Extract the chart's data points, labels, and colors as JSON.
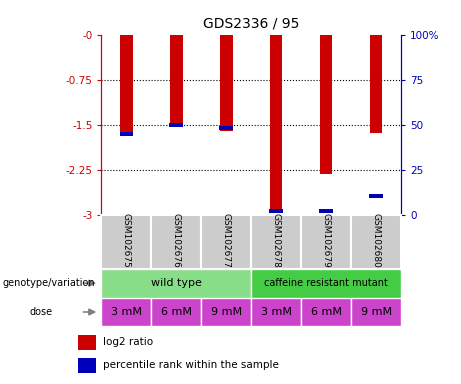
{
  "title": "GDS2336 / 95",
  "samples": [
    "GSM102675",
    "GSM102676",
    "GSM102677",
    "GSM102678",
    "GSM102679",
    "GSM102680"
  ],
  "log2_ratio": [
    -1.68,
    -1.52,
    -1.6,
    -2.97,
    -2.32,
    -1.63
  ],
  "percentile_rank_y": [
    -1.65,
    -1.5,
    -1.55,
    -2.93,
    -2.93,
    -2.68
  ],
  "ylim": [
    -3,
    0
  ],
  "y_ticks": [
    0,
    -0.75,
    -1.5,
    -2.25,
    -3
  ],
  "right_y_ticks_pos": [
    0,
    -0.75,
    -1.5,
    -2.25,
    -3
  ],
  "right_y_tick_labels": [
    "100%",
    "75",
    "50",
    "25",
    "0"
  ],
  "bar_color": "#cc0000",
  "percentile_color": "#0000bb",
  "dose_labels": [
    "3 mM",
    "6 mM",
    "9 mM",
    "3 mM",
    "6 mM",
    "9 mM"
  ],
  "dose_bg": "#cc44cc",
  "sample_bg": "#cccccc",
  "genotype_bg_wild": "#88dd88",
  "genotype_bg_mutant": "#44cc44",
  "legend_log2_color": "#cc0000",
  "legend_pct_color": "#0000bb",
  "bar_width": 0.25,
  "fig_bg": "#ffffff"
}
